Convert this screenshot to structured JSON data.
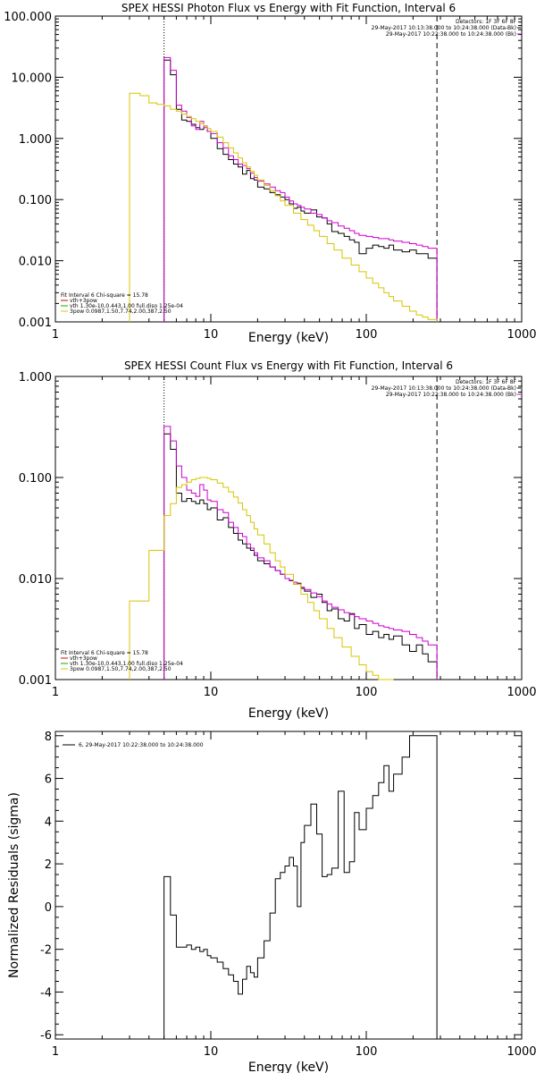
{
  "colors": {
    "black": "#000000",
    "magenta": "#cc00cc",
    "yellow": "#d8c400",
    "red": "#e00000",
    "green": "#00b000"
  },
  "chart_data": [
    {
      "type": "line",
      "title": "SPEX HESSI Photon Flux vs Energy with Fit Function, Interval 6",
      "xlabel": "Energy (keV)",
      "ylabel": "",
      "xscale": "log",
      "yscale": "log",
      "xlim": [
        1,
        1000
      ],
      "ylim": [
        0.001,
        100
      ],
      "xtick_labels": [
        "1",
        "10",
        "100",
        "1000"
      ],
      "ytick_labels": [
        "100.000",
        "10.000",
        "1.000",
        "0.100",
        "0.010",
        "0.001"
      ],
      "ytick_values": [
        100,
        10,
        1,
        0.1,
        0.01,
        0.001
      ],
      "vlines": [
        {
          "x": 5,
          "style": "dotted"
        },
        {
          "x": 285,
          "style": "dashed"
        }
      ],
      "header_lines": [
        "Detectors: 1F 3F 6F 8F",
        "29-May-2017 10:13:38.000 to 10:24:38.000 (Data-Bk)",
        "29-May-2017 10:22:38.000 to 10:24:38.000 (Bk)"
      ],
      "fit_lines": [
        {
          "text": "Fit Interval 6   Chi-square = 15.78",
          "color": "#000000"
        },
        {
          "text": "vth+3pow",
          "color": "#e00000"
        },
        {
          "text": "vth 1.30e-10,0.443,1.00  full.diso 1.25e-04",
          "color": "#00b000"
        },
        {
          "text": "3pow 0.0987,1.50,7.74,2.00,387,2.50",
          "color": "#d8c400"
        }
      ],
      "series": [
        {
          "color": "#000000",
          "x": [
            5,
            5.5,
            6,
            6.5,
            7,
            7.5,
            8,
            8.5,
            9,
            9.5,
            10,
            11,
            12,
            13,
            14,
            15,
            16,
            17,
            18,
            19,
            20,
            22,
            24,
            26,
            28,
            30,
            32,
            34,
            36,
            38,
            40,
            44,
            48,
            52,
            56,
            60,
            66,
            72,
            78,
            84,
            90,
            100,
            110,
            120,
            130,
            140,
            150,
            170,
            190,
            210,
            230,
            250,
            285
          ],
          "y": [
            19,
            11,
            3.0,
            2.0,
            1.9,
            1.7,
            1.5,
            1.4,
            1.6,
            1.3,
            1.0,
            0.68,
            0.55,
            0.45,
            0.38,
            0.34,
            0.26,
            0.3,
            0.22,
            0.21,
            0.16,
            0.15,
            0.13,
            0.12,
            0.11,
            0.1,
            0.085,
            0.072,
            0.075,
            0.065,
            0.06,
            0.068,
            0.052,
            0.05,
            0.04,
            0.03,
            0.028,
            0.025,
            0.022,
            0.02,
            0.013,
            0.016,
            0.018,
            0.017,
            0.016,
            0.018,
            0.015,
            0.014,
            0.015,
            0.013,
            0.013,
            0.011,
            0.011
          ]
        },
        {
          "color": "#cc00cc",
          "x": [
            5,
            5.5,
            6,
            6.5,
            7,
            7.5,
            8,
            8.5,
            9,
            9.5,
            10,
            11,
            12,
            13,
            14,
            15,
            16,
            17,
            18,
            19,
            20,
            22,
            24,
            26,
            28,
            30,
            32,
            34,
            36,
            38,
            40,
            44,
            48,
            52,
            56,
            60,
            66,
            72,
            78,
            84,
            90,
            100,
            110,
            120,
            130,
            140,
            150,
            170,
            190,
            210,
            230,
            250,
            285
          ],
          "y": [
            21,
            13,
            3.5,
            2.8,
            2.2,
            1.6,
            1.4,
            1.9,
            1.5,
            1.3,
            1.2,
            0.85,
            0.7,
            0.52,
            0.45,
            0.38,
            0.36,
            0.32,
            0.27,
            0.23,
            0.2,
            0.18,
            0.16,
            0.14,
            0.13,
            0.11,
            0.095,
            0.085,
            0.08,
            0.075,
            0.07,
            0.06,
            0.057,
            0.05,
            0.045,
            0.042,
            0.037,
            0.034,
            0.031,
            0.028,
            0.026,
            0.025,
            0.024,
            0.023,
            0.023,
            0.022,
            0.021,
            0.02,
            0.019,
            0.018,
            0.017,
            0.016,
            0.015
          ]
        },
        {
          "color": "#d8c400",
          "x": [
            3,
            3.5,
            4,
            4.5,
            5,
            5.5,
            6,
            6.5,
            7,
            7.5,
            8,
            8.5,
            9,
            9.5,
            10,
            11,
            12,
            13,
            14,
            15,
            16,
            17,
            18,
            19,
            20,
            22,
            24,
            26,
            28,
            30,
            34,
            38,
            42,
            46,
            50,
            56,
            62,
            70,
            80,
            90,
            100,
            110,
            120,
            130,
            140,
            150,
            170,
            190,
            210,
            230,
            250,
            285
          ],
          "y": [
            5.5,
            5.0,
            3.8,
            3.6,
            3.4,
            3.0,
            2.8,
            2.5,
            2.3,
            2.1,
            1.9,
            1.75,
            1.6,
            1.45,
            1.3,
            1.05,
            0.85,
            0.7,
            0.58,
            0.48,
            0.4,
            0.34,
            0.29,
            0.25,
            0.21,
            0.17,
            0.14,
            0.115,
            0.095,
            0.08,
            0.06,
            0.047,
            0.038,
            0.031,
            0.025,
            0.019,
            0.015,
            0.011,
            0.0085,
            0.0066,
            0.0052,
            0.0043,
            0.0036,
            0.003,
            0.0026,
            0.0022,
            0.0018,
            0.0015,
            0.0013,
            0.0012,
            0.0011,
            0.001
          ]
        }
      ]
    },
    {
      "type": "line",
      "title": "SPEX HESSI Count Flux vs Energy with Fit Function, Interval 6",
      "xlabel": "Energy (keV)",
      "ylabel": "",
      "xscale": "log",
      "yscale": "log",
      "xlim": [
        1,
        1000
      ],
      "ylim": [
        0.001,
        1
      ],
      "xtick_labels": [
        "1",
        "10",
        "100",
        "1000"
      ],
      "ytick_labels": [
        "1.000",
        "0.100",
        "0.010",
        "0.001"
      ],
      "ytick_values": [
        1,
        0.1,
        0.01,
        0.001
      ],
      "vlines": [
        {
          "x": 5,
          "style": "dotted"
        },
        {
          "x": 285,
          "style": "dashed"
        }
      ],
      "header_lines": [
        "Detectors: 1F 3F 6F 8F",
        "29-May-2017 10:13:38.000 to 10:24:38.000 (Data-Bk)",
        "29-May-2017 10:22:38.000 to 10:24:38.000 (Bk)"
      ],
      "fit_lines": [
        {
          "text": "Fit Interval 6   Chi-square = 15.78",
          "color": "#000000"
        },
        {
          "text": "vth+3pow",
          "color": "#e00000"
        },
        {
          "text": "vth 1.30e-10,0.443,1.00  full.diso 1.25e-04",
          "color": "#00b000"
        },
        {
          "text": "3pow 0.0987,1.50,7.74,2.00,387,2.50",
          "color": "#d8c400"
        }
      ],
      "series": [
        {
          "color": "#000000",
          "x": [
            5,
            5.5,
            6,
            6.5,
            7,
            7.5,
            8,
            8.5,
            9,
            9.5,
            10,
            11,
            12,
            13,
            14,
            15,
            16,
            17,
            18,
            19,
            20,
            22,
            24,
            26,
            28,
            30,
            32,
            34,
            36,
            38,
            40,
            44,
            48,
            52,
            56,
            60,
            66,
            72,
            78,
            84,
            90,
            100,
            110,
            120,
            130,
            140,
            150,
            170,
            190,
            210,
            230,
            250,
            285
          ],
          "y": [
            0.27,
            0.19,
            0.07,
            0.058,
            0.062,
            0.058,
            0.055,
            0.06,
            0.055,
            0.048,
            0.05,
            0.038,
            0.04,
            0.032,
            0.028,
            0.024,
            0.022,
            0.02,
            0.019,
            0.017,
            0.015,
            0.014,
            0.013,
            0.012,
            0.011,
            0.01,
            0.0095,
            0.0088,
            0.009,
            0.008,
            0.0075,
            0.0065,
            0.007,
            0.0058,
            0.0048,
            0.005,
            0.004,
            0.0038,
            0.0045,
            0.0032,
            0.0035,
            0.0028,
            0.003,
            0.0026,
            0.0028,
            0.0025,
            0.0027,
            0.0022,
            0.0019,
            0.0022,
            0.0018,
            0.0015,
            0.0015
          ]
        },
        {
          "color": "#cc00cc",
          "x": [
            5,
            5.5,
            6,
            6.5,
            7,
            7.5,
            8,
            8.5,
            9,
            9.5,
            10,
            11,
            12,
            13,
            14,
            15,
            16,
            17,
            18,
            19,
            20,
            22,
            24,
            26,
            28,
            30,
            32,
            34,
            36,
            38,
            40,
            44,
            48,
            52,
            56,
            60,
            66,
            72,
            78,
            84,
            90,
            100,
            110,
            120,
            130,
            140,
            150,
            170,
            190,
            210,
            230,
            250,
            285
          ],
          "y": [
            0.32,
            0.23,
            0.13,
            0.1,
            0.075,
            0.07,
            0.065,
            0.085,
            0.075,
            0.06,
            0.058,
            0.048,
            0.045,
            0.036,
            0.032,
            0.028,
            0.026,
            0.022,
            0.02,
            0.018,
            0.016,
            0.015,
            0.013,
            0.012,
            0.011,
            0.01,
            0.0096,
            0.0092,
            0.0088,
            0.0082,
            0.0078,
            0.0072,
            0.0066,
            0.006,
            0.0056,
            0.0052,
            0.0049,
            0.0046,
            0.0044,
            0.0042,
            0.004,
            0.0038,
            0.0036,
            0.0034,
            0.0033,
            0.0032,
            0.0031,
            0.003,
            0.0028,
            0.0026,
            0.0024,
            0.0022,
            0.002
          ]
        },
        {
          "color": "#d8c400",
          "x": [
            3,
            3.5,
            4,
            4.5,
            5,
            5.5,
            6,
            6.5,
            7,
            7.5,
            8,
            8.5,
            9,
            9.5,
            10,
            11,
            12,
            13,
            14,
            15,
            16,
            17,
            18,
            19,
            20,
            22,
            24,
            26,
            28,
            30,
            34,
            38,
            42,
            46,
            50,
            56,
            62,
            70,
            80,
            90,
            100,
            110,
            120,
            130,
            140,
            150
          ],
          "y": [
            0.006,
            0.006,
            0.019,
            0.019,
            0.042,
            0.055,
            0.08,
            0.085,
            0.09,
            0.095,
            0.098,
            0.1,
            0.1,
            0.098,
            0.095,
            0.088,
            0.08,
            0.072,
            0.064,
            0.056,
            0.048,
            0.042,
            0.036,
            0.031,
            0.027,
            0.022,
            0.018,
            0.015,
            0.013,
            0.011,
            0.0088,
            0.007,
            0.0058,
            0.0048,
            0.004,
            0.0032,
            0.0026,
            0.0021,
            0.0017,
            0.0014,
            0.0012,
            0.0011,
            0.001,
            0.001,
            0.001,
            0.001
          ]
        }
      ]
    },
    {
      "type": "line",
      "title": "",
      "xlabel": "Energy (keV)",
      "ylabel": "Normalized Residuals (sigma)",
      "xscale": "log",
      "yscale": "linear",
      "xlim": [
        1,
        1000
      ],
      "ylim": [
        -6.2,
        8.2
      ],
      "xtick_labels": [
        "1",
        "10",
        "100",
        "1000"
      ],
      "ytick_labels": [
        "8",
        "6",
        "4",
        "2",
        "0",
        "-2",
        "-4",
        "-6"
      ],
      "ytick_values": [
        8,
        6,
        4,
        2,
        0,
        -2,
        -4,
        -6
      ],
      "legend": {
        "text": "6, 29-May-2017 10:22:38.000 to 10:24:38.000",
        "color": "#000000",
        "placement": "top-left"
      },
      "series": [
        {
          "color": "#000000",
          "x": [
            5,
            5.5,
            6,
            6.5,
            7,
            7.5,
            8,
            8.5,
            9,
            9.5,
            10,
            11,
            12,
            13,
            14,
            15,
            16,
            17,
            18,
            19,
            20,
            22,
            24,
            26,
            28,
            30,
            32,
            34,
            36,
            38,
            40,
            44,
            48,
            52,
            56,
            60,
            66,
            72,
            78,
            84,
            90,
            100,
            110,
            120,
            130,
            140,
            150,
            170,
            190,
            210,
            230,
            250,
            285
          ],
          "y": [
            1.4,
            -0.4,
            -1.9,
            -1.9,
            -1.8,
            -2.0,
            -1.9,
            -2.1,
            -2.0,
            -2.3,
            -2.4,
            -2.6,
            -2.9,
            -3.2,
            -3.5,
            -4.1,
            -3.4,
            -2.8,
            -3.1,
            -3.3,
            -2.4,
            -1.6,
            -0.3,
            1.3,
            1.6,
            1.9,
            2.3,
            1.9,
            0.0,
            3.0,
            3.8,
            4.8,
            3.4,
            1.4,
            1.5,
            1.8,
            5.4,
            1.6,
            2.1,
            4.4,
            3.6,
            4.6,
            5.2,
            5.8,
            6.6,
            5.4,
            6.2,
            7.0,
            8.0,
            8.0,
            8.0,
            8.0,
            8.0
          ]
        }
      ]
    }
  ]
}
